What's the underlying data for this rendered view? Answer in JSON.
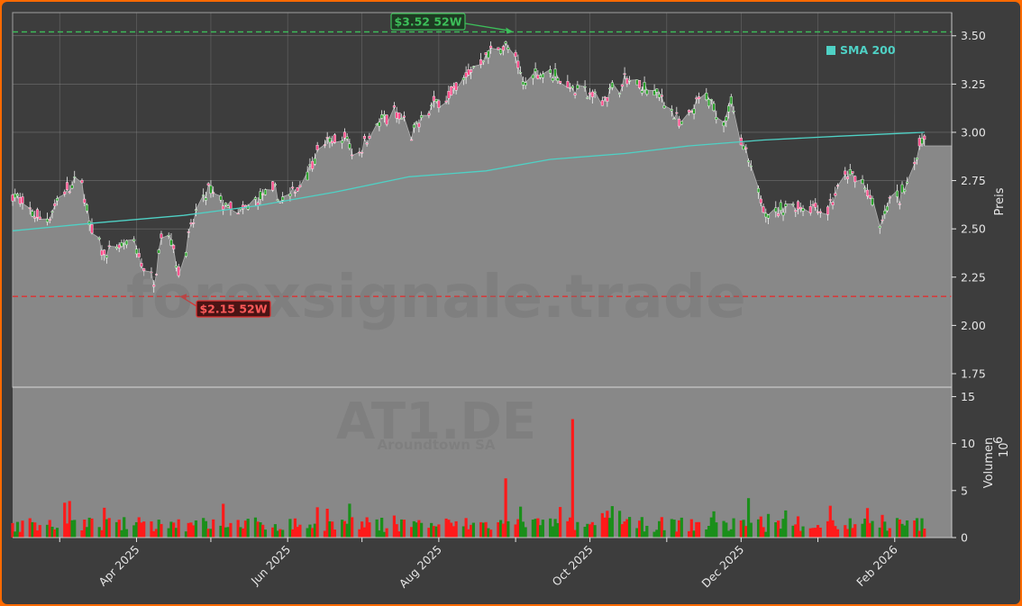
{
  "watermark": {
    "text": "forexsignale.trade",
    "ticker": "AT1.DE",
    "company": "Aroundtown SA"
  },
  "colors": {
    "background": "#3d3d3d",
    "panel": "#888888",
    "border": "#ff6a00",
    "area": "#888888",
    "up": "#1a8f1a",
    "down": "#ff1a1a",
    "sma": "#4fd1c5",
    "high_line": "#3dbf5a",
    "low_line": "#e03030",
    "grid": "#9a9a9a"
  },
  "chart_data": [
    {
      "type": "candlestick",
      "panel": "price",
      "ylabel": "Preis",
      "ylim": [
        1.68,
        3.62
      ],
      "yticks": [
        "1.75",
        "2.00",
        "2.25",
        "2.50",
        "2.75",
        "3.00",
        "3.25",
        "3.50"
      ],
      "xlim": [
        "2025-02-10",
        "2026-02-24"
      ],
      "xticks": [
        {
          "date": "2025-03-01",
          "label": ""
        },
        {
          "date": "2025-04-01",
          "label": "Apr 2025"
        },
        {
          "date": "2025-05-01",
          "label": ""
        },
        {
          "date": "2025-06-01",
          "label": "Jun 2025"
        },
        {
          "date": "2025-07-01",
          "label": ""
        },
        {
          "date": "2025-08-01",
          "label": "Aug 2025"
        },
        {
          "date": "2025-09-01",
          "label": ""
        },
        {
          "date": "2025-10-01",
          "label": "Oct 2025"
        },
        {
          "date": "2025-11-01",
          "label": ""
        },
        {
          "date": "2025-12-01",
          "label": "Dec 2025"
        },
        {
          "date": "2026-01-01",
          "label": ""
        },
        {
          "date": "2026-02-01",
          "label": "Feb 2026"
        }
      ],
      "price_path": [
        [
          "2025-02-10",
          2.68
        ],
        [
          "2025-02-18",
          2.58
        ],
        [
          "2025-02-24",
          2.55
        ],
        [
          "2025-03-03",
          2.7
        ],
        [
          "2025-03-10",
          2.75
        ],
        [
          "2025-03-13",
          2.52
        ],
        [
          "2025-03-17",
          2.42
        ],
        [
          "2025-03-20",
          2.36
        ],
        [
          "2025-03-24",
          2.4
        ],
        [
          "2025-03-31",
          2.42
        ],
        [
          "2025-04-04",
          2.3
        ],
        [
          "2025-04-08",
          2.22
        ],
        [
          "2025-04-11",
          2.48
        ],
        [
          "2025-04-15",
          2.45
        ],
        [
          "2025-04-18",
          2.28
        ],
        [
          "2025-04-22",
          2.45
        ],
        [
          "2025-04-25",
          2.58
        ],
        [
          "2025-04-30",
          2.7
        ],
        [
          "2025-05-06",
          2.63
        ],
        [
          "2025-05-13",
          2.58
        ],
        [
          "2025-05-19",
          2.64
        ],
        [
          "2025-05-26",
          2.7
        ],
        [
          "2025-05-31",
          2.63
        ],
        [
          "2025-06-04",
          2.7
        ],
        [
          "2025-06-09",
          2.8
        ],
        [
          "2025-06-13",
          2.9
        ],
        [
          "2025-06-18",
          2.95
        ],
        [
          "2025-06-25",
          2.97
        ],
        [
          "2025-06-28",
          2.85
        ],
        [
          "2025-07-03",
          2.98
        ],
        [
          "2025-07-08",
          3.05
        ],
        [
          "2025-07-14",
          3.1
        ],
        [
          "2025-07-18",
          3.05
        ],
        [
          "2025-07-21",
          2.97
        ],
        [
          "2025-07-25",
          3.08
        ],
        [
          "2025-08-01",
          3.17
        ],
        [
          "2025-08-06",
          3.2
        ],
        [
          "2025-08-11",
          3.28
        ],
        [
          "2025-08-16",
          3.35
        ],
        [
          "2025-08-20",
          3.4
        ],
        [
          "2025-08-26",
          3.45
        ],
        [
          "2025-08-31",
          3.42
        ],
        [
          "2025-09-04",
          3.25
        ],
        [
          "2025-09-08",
          3.3
        ],
        [
          "2025-09-14",
          3.32
        ],
        [
          "2025-09-19",
          3.28
        ],
        [
          "2025-09-24",
          3.23
        ],
        [
          "2025-09-30",
          3.2
        ],
        [
          "2025-10-06",
          3.17
        ],
        [
          "2025-10-10",
          3.22
        ],
        [
          "2025-10-16",
          3.27
        ],
        [
          "2025-10-22",
          3.23
        ],
        [
          "2025-10-28",
          3.2
        ],
        [
          "2025-11-03",
          3.12
        ],
        [
          "2025-11-07",
          3.02
        ],
        [
          "2025-11-12",
          3.12
        ],
        [
          "2025-11-16",
          3.2
        ],
        [
          "2025-11-19",
          3.14
        ],
        [
          "2025-11-24",
          3.05
        ],
        [
          "2025-11-27",
          3.18
        ],
        [
          "2025-11-29",
          2.98
        ],
        [
          "2025-12-02",
          2.92
        ],
        [
          "2025-12-06",
          2.75
        ],
        [
          "2025-12-11",
          2.6
        ],
        [
          "2025-12-15",
          2.57
        ],
        [
          "2025-12-19",
          2.62
        ],
        [
          "2025-12-25",
          2.62
        ],
        [
          "2025-12-30",
          2.62
        ],
        [
          "2026-01-05",
          2.6
        ],
        [
          "2026-01-09",
          2.7
        ],
        [
          "2026-01-13",
          2.78
        ],
        [
          "2026-01-19",
          2.75
        ],
        [
          "2026-01-23",
          2.62
        ],
        [
          "2026-01-26",
          2.5
        ],
        [
          "2026-01-30",
          2.65
        ],
        [
          "2026-02-03",
          2.66
        ],
        [
          "2026-02-07",
          2.78
        ],
        [
          "2026-02-10",
          2.88
        ],
        [
          "2026-02-13",
          3.0
        ],
        [
          "2026-02-14",
          2.93
        ],
        [
          "2026-02-24",
          2.93
        ]
      ],
      "sma": {
        "name": "SMA 200",
        "points": [
          [
            "2025-02-10",
            2.49
          ],
          [
            "2025-03-15",
            2.53
          ],
          [
            "2025-04-20",
            2.57
          ],
          [
            "2025-05-20",
            2.62
          ],
          [
            "2025-06-20",
            2.69
          ],
          [
            "2025-07-20",
            2.77
          ],
          [
            "2025-08-20",
            2.8
          ],
          [
            "2025-09-15",
            2.86
          ],
          [
            "2025-10-15",
            2.89
          ],
          [
            "2025-11-10",
            2.93
          ],
          [
            "2025-12-10",
            2.96
          ],
          [
            "2026-01-10",
            2.98
          ],
          [
            "2026-02-13",
            3.0
          ]
        ]
      },
      "annotations": [
        {
          "label": "$3.52 52W",
          "value": 3.52,
          "date": "2025-08-31",
          "kind": "high"
        },
        {
          "label": "$2.15 52W",
          "value": 2.15,
          "date": "2025-04-18",
          "kind": "low"
        }
      ]
    },
    {
      "type": "bar",
      "panel": "volume",
      "ylabel": "Volumen",
      "unit_exponent": "6",
      "ylim": [
        0,
        16
      ],
      "yticks": [
        "0",
        "5",
        "10",
        "15"
      ],
      "highlights": [
        {
          "date": "2025-08-28",
          "value": 6.3,
          "up": false
        },
        {
          "date": "2025-09-24",
          "value": 12.6,
          "up": false
        }
      ]
    }
  ]
}
